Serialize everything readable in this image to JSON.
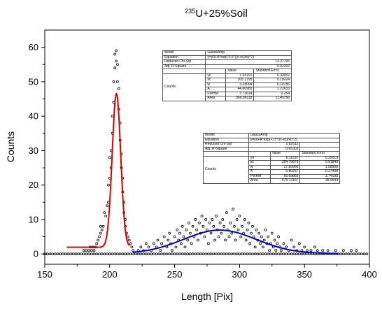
{
  "chart_data": {
    "type": "scatter",
    "title": "235U+25%Soil",
    "title_sup": "235",
    "title_rest": "U+25%Soil",
    "xlabel": "Length [Pix]",
    "ylabel": "Counts",
    "xlim": [
      150,
      400
    ],
    "ylim": [
      -3,
      65
    ],
    "xticks": [
      150,
      200,
      250,
      300,
      350,
      400
    ],
    "yticks": [
      0,
      10,
      20,
      30,
      40,
      50,
      60
    ],
    "grid": false,
    "colors": {
      "points": "#000000",
      "fit1": "#e00000",
      "fit2": "#0000cc"
    },
    "fits": [
      {
        "name": "fit1",
        "model": "GaussAmp",
        "equation": "y=y0+A*exp(-0.5*((x-xc)/w)^2)",
        "reduced_chi_sqr": "13.37795",
        "adj_r_square": "0.91292",
        "params": [
          {
            "name": "y0",
            "value": "1.94191",
            "error": "0.33052"
          },
          {
            "name": "xc",
            "value": "205.1795",
            "error": "0.10224"
          },
          {
            "name": "w",
            "value": "3.28099",
            "error": "0.10786"
          },
          {
            "name": "A",
            "value": "44.60985",
            "error": "1.22633"
          },
          {
            "name": "FWHM",
            "value": "7.72614",
            "error": "0.254"
          },
          {
            "name": "Area",
            "value": "366.88118",
            "error": "11.45756"
          }
        ],
        "y0": 1.94191,
        "xc": 205.1795,
        "w": 3.28099,
        "A": 44.60985,
        "xrange": [
          167,
          215
        ]
      },
      {
        "name": "fit2",
        "model": "GaussAmp",
        "equation": "y=y0+A*exp(-0.5*((x-xc)/w)^2)",
        "reduced_chi_sqr": "2.92512",
        "adj_r_square": "0.65303",
        "params": [
          {
            "name": "y0",
            "value": "0.11537",
            "error": "0.25019"
          },
          {
            "name": "xc",
            "value": "284.79879",
            "error": "0.91849"
          },
          {
            "name": "w",
            "value": "27.89966",
            "error": "1.58908"
          },
          {
            "name": "A",
            "value": "6.80257",
            "error": "0.27438"
          },
          {
            "name": "FWHM",
            "value": "65.69869",
            "error": "3.74198"
          },
          {
            "name": "Area",
            "value": "475.73167",
            "error": "38.0544"
          }
        ],
        "y0": 0.11537,
        "xc": 284.79879,
        "w": 27.89966,
        "A": 6.80257,
        "xrange": [
          218,
          376
        ]
      }
    ],
    "points": [
      [
        150,
        0
      ],
      [
        152,
        0
      ],
      [
        154,
        0
      ],
      [
        156,
        0
      ],
      [
        158,
        0
      ],
      [
        160,
        0
      ],
      [
        162,
        0
      ],
      [
        164,
        0
      ],
      [
        166,
        0
      ],
      [
        168,
        0
      ],
      [
        170,
        0
      ],
      [
        172,
        0
      ],
      [
        174,
        0
      ],
      [
        176,
        0
      ],
      [
        178,
        0
      ],
      [
        180,
        0
      ],
      [
        182,
        0
      ],
      [
        184,
        0
      ],
      [
        186,
        0
      ],
      [
        188,
        0
      ],
      [
        190,
        0
      ],
      [
        192,
        0
      ],
      [
        194,
        0
      ],
      [
        196,
        0
      ],
      [
        198,
        0
      ],
      [
        200,
        0
      ],
      [
        202,
        0
      ],
      [
        204,
        0
      ],
      [
        206,
        0
      ],
      [
        208,
        0
      ],
      [
        210,
        0
      ],
      [
        212,
        0
      ],
      [
        214,
        0
      ],
      [
        216,
        0
      ],
      [
        218,
        0
      ],
      [
        220,
        0
      ],
      [
        222,
        0
      ],
      [
        224,
        0
      ],
      [
        226,
        0
      ],
      [
        228,
        0
      ],
      [
        230,
        0
      ],
      [
        232,
        0
      ],
      [
        234,
        0
      ],
      [
        236,
        0
      ],
      [
        238,
        0
      ],
      [
        240,
        0
      ],
      [
        242,
        0
      ],
      [
        244,
        0
      ],
      [
        246,
        0
      ],
      [
        248,
        0
      ],
      [
        250,
        0
      ],
      [
        252,
        0
      ],
      [
        254,
        0
      ],
      [
        256,
        0
      ],
      [
        258,
        0
      ],
      [
        260,
        0
      ],
      [
        262,
        0
      ],
      [
        264,
        0
      ],
      [
        266,
        0
      ],
      [
        268,
        0
      ],
      [
        270,
        0
      ],
      [
        272,
        0
      ],
      [
        274,
        0
      ],
      [
        276,
        0
      ],
      [
        278,
        0
      ],
      [
        280,
        0
      ],
      [
        282,
        0
      ],
      [
        284,
        0
      ],
      [
        286,
        0
      ],
      [
        288,
        0
      ],
      [
        290,
        0
      ],
      [
        292,
        0
      ],
      [
        294,
        0
      ],
      [
        296,
        0
      ],
      [
        298,
        0
      ],
      [
        300,
        0
      ],
      [
        302,
        0
      ],
      [
        304,
        0
      ],
      [
        306,
        0
      ],
      [
        308,
        0
      ],
      [
        310,
        0
      ],
      [
        312,
        0
      ],
      [
        314,
        0
      ],
      [
        316,
        0
      ],
      [
        318,
        0
      ],
      [
        320,
        0
      ],
      [
        322,
        0
      ],
      [
        324,
        0
      ],
      [
        326,
        0
      ],
      [
        328,
        0
      ],
      [
        330,
        0
      ],
      [
        332,
        0
      ],
      [
        334,
        0
      ],
      [
        336,
        0
      ],
      [
        338,
        0
      ],
      [
        340,
        0
      ],
      [
        342,
        0
      ],
      [
        344,
        0
      ],
      [
        346,
        0
      ],
      [
        348,
        0
      ],
      [
        350,
        0
      ],
      [
        352,
        0
      ],
      [
        354,
        0
      ],
      [
        356,
        0
      ],
      [
        358,
        0
      ],
      [
        360,
        0
      ],
      [
        362,
        0
      ],
      [
        364,
        0
      ],
      [
        366,
        0
      ],
      [
        368,
        0
      ],
      [
        370,
        0
      ],
      [
        372,
        0
      ],
      [
        374,
        0
      ],
      [
        376,
        0
      ],
      [
        378,
        0
      ],
      [
        380,
        0
      ],
      [
        382,
        0
      ],
      [
        384,
        0
      ],
      [
        386,
        0
      ],
      [
        388,
        0
      ],
      [
        390,
        0
      ],
      [
        392,
        0
      ],
      [
        394,
        0
      ],
      [
        396,
        0
      ],
      [
        398,
        0
      ],
      [
        180,
        1
      ],
      [
        182,
        1
      ],
      [
        184,
        1
      ],
      [
        186,
        1
      ],
      [
        188,
        1
      ],
      [
        185,
        2
      ],
      [
        187,
        2
      ],
      [
        189,
        2
      ],
      [
        190,
        3
      ],
      [
        191,
        4
      ],
      [
        192,
        5
      ],
      [
        193,
        6
      ],
      [
        194,
        7
      ],
      [
        195,
        8
      ],
      [
        193,
        8
      ],
      [
        196,
        12
      ],
      [
        197,
        11
      ],
      [
        198,
        14
      ],
      [
        199,
        15
      ],
      [
        199,
        20
      ],
      [
        200,
        22
      ],
      [
        201,
        25
      ],
      [
        200,
        28
      ],
      [
        201,
        30
      ],
      [
        202,
        35
      ],
      [
        202,
        40
      ],
      [
        203,
        44
      ],
      [
        203,
        50
      ],
      [
        204,
        54
      ],
      [
        204,
        58
      ],
      [
        205,
        59
      ],
      [
        205,
        56
      ],
      [
        206,
        55
      ],
      [
        206,
        50
      ],
      [
        207,
        48
      ],
      [
        207,
        42
      ],
      [
        208,
        38
      ],
      [
        208,
        33
      ],
      [
        209,
        29
      ],
      [
        209,
        25
      ],
      [
        210,
        22
      ],
      [
        210,
        18
      ],
      [
        211,
        15
      ],
      [
        211,
        12
      ],
      [
        212,
        10
      ],
      [
        212,
        8
      ],
      [
        213,
        6
      ],
      [
        214,
        5
      ],
      [
        215,
        4
      ],
      [
        216,
        3
      ],
      [
        217,
        2
      ],
      [
        218,
        1
      ],
      [
        222,
        1
      ],
      [
        224,
        2
      ],
      [
        226,
        1
      ],
      [
        228,
        3
      ],
      [
        230,
        2
      ],
      [
        232,
        1
      ],
      [
        234,
        3
      ],
      [
        236,
        2
      ],
      [
        237,
        4
      ],
      [
        239,
        1
      ],
      [
        240,
        3
      ],
      [
        242,
        5
      ],
      [
        244,
        2
      ],
      [
        245,
        4
      ],
      [
        246,
        6
      ],
      [
        247,
        3
      ],
      [
        248,
        1
      ],
      [
        250,
        5
      ],
      [
        251,
        2
      ],
      [
        252,
        7
      ],
      [
        253,
        4
      ],
      [
        254,
        6
      ],
      [
        255,
        3
      ],
      [
        256,
        8
      ],
      [
        257,
        5
      ],
      [
        258,
        2
      ],
      [
        259,
        7
      ],
      [
        260,
        4
      ],
      [
        261,
        9
      ],
      [
        262,
        6
      ],
      [
        263,
        3
      ],
      [
        264,
        8
      ],
      [
        265,
        5
      ],
      [
        266,
        10
      ],
      [
        267,
        7
      ],
      [
        268,
        4
      ],
      [
        269,
        9
      ],
      [
        270,
        6
      ],
      [
        271,
        11
      ],
      [
        272,
        8
      ],
      [
        273,
        5
      ],
      [
        274,
        10
      ],
      [
        275,
        7
      ],
      [
        276,
        3
      ],
      [
        277,
        9
      ],
      [
        278,
        6
      ],
      [
        279,
        10
      ],
      [
        280,
        8
      ],
      [
        281,
        4
      ],
      [
        282,
        11
      ],
      [
        283,
        7
      ],
      [
        284,
        5
      ],
      [
        285,
        9
      ],
      [
        286,
        6
      ],
      [
        287,
        10
      ],
      [
        288,
        8
      ],
      [
        289,
        4
      ],
      [
        290,
        12
      ],
      [
        291,
        7
      ],
      [
        292,
        5
      ],
      [
        293,
        9
      ],
      [
        294,
        6
      ],
      [
        295,
        13
      ],
      [
        296,
        8
      ],
      [
        297,
        4
      ],
      [
        298,
        10
      ],
      [
        299,
        7
      ],
      [
        300,
        11
      ],
      [
        301,
        5
      ],
      [
        302,
        8
      ],
      [
        303,
        6
      ],
      [
        304,
        10
      ],
      [
        305,
        4
      ],
      [
        306,
        7
      ],
      [
        307,
        9
      ],
      [
        308,
        3
      ],
      [
        309,
        6
      ],
      [
        310,
        8
      ],
      [
        311,
        5
      ],
      [
        312,
        2
      ],
      [
        313,
        7
      ],
      [
        314,
        4
      ],
      [
        315,
        6
      ],
      [
        316,
        3
      ],
      [
        317,
        5
      ],
      [
        318,
        2
      ],
      [
        319,
        4
      ],
      [
        320,
        7
      ],
      [
        321,
        3
      ],
      [
        322,
        5
      ],
      [
        323,
        1
      ],
      [
        324,
        3
      ],
      [
        325,
        6
      ],
      [
        326,
        2
      ],
      [
        327,
        4
      ],
      [
        328,
        1
      ],
      [
        329,
        3
      ],
      [
        330,
        5
      ],
      [
        331,
        2
      ],
      [
        332,
        1
      ],
      [
        334,
        3
      ],
      [
        336,
        2
      ],
      [
        338,
        1
      ],
      [
        340,
        4
      ],
      [
        342,
        2
      ],
      [
        344,
        1
      ],
      [
        346,
        3
      ],
      [
        348,
        1
      ],
      [
        350,
        2
      ],
      [
        352,
        1
      ],
      [
        355,
        1
      ],
      [
        358,
        2
      ],
      [
        360,
        1
      ],
      [
        364,
        1
      ],
      [
        368,
        1
      ],
      [
        374,
        1
      ],
      [
        380,
        1
      ],
      [
        386,
        1
      ],
      [
        390,
        1
      ]
    ]
  }
}
